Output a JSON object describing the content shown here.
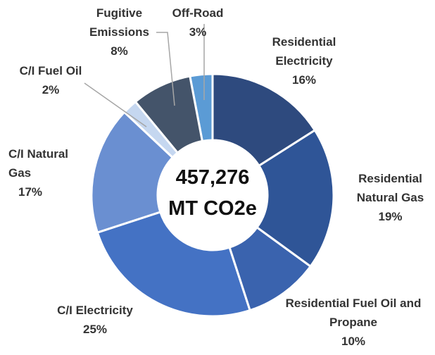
{
  "chart_data": {
    "type": "donut",
    "categories": [
      "Residential Electricity",
      "Residential Natural Gas",
      "Residential Fuel Oil and Propane",
      "C/I Electricity",
      "C/I Natural Gas",
      "C/I Fuel Oil",
      "Fugitive Emissions",
      "Off-Road"
    ],
    "values": [
      16,
      19,
      10,
      25,
      17,
      2,
      8,
      3
    ],
    "value_labels": [
      "16%",
      "19%",
      "10%",
      "25%",
      "17%",
      "2%",
      "8%",
      "3%"
    ],
    "colors": [
      "#2e4a7e",
      "#2f5597",
      "#3a63ae",
      "#4472c4",
      "#6a8fd1",
      "#c5d7f0",
      "#44546a",
      "#5b9bd5"
    ],
    "center_text": [
      "457,276",
      "MT CO2e"
    ]
  }
}
